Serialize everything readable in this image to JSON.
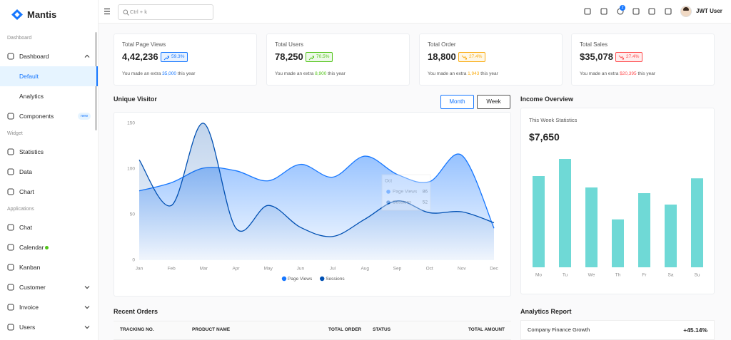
{
  "sidebar": {
    "brand": "Mantis",
    "groups": [
      {
        "label": "Dashboard",
        "items": [
          {
            "label": "Dashboard",
            "chevron": "up"
          },
          {
            "label": "Default",
            "sub": true,
            "selected": true
          },
          {
            "label": "Analytics",
            "sub": true
          },
          {
            "label": "Components",
            "badge": "new"
          }
        ]
      },
      {
        "label": "Widget",
        "items": [
          {
            "label": "Statistics"
          },
          {
            "label": "Data"
          },
          {
            "label": "Chart"
          }
        ]
      },
      {
        "label": "Applications",
        "items": [
          {
            "label": "Chat"
          },
          {
            "label": "Calendar",
            "dot": "#52c41a"
          },
          {
            "label": "Kanban"
          },
          {
            "label": "Customer",
            "chevron": "down"
          },
          {
            "label": "Invoice",
            "chevron": "down"
          },
          {
            "label": "Users",
            "chevron": "down"
          }
        ]
      }
    ]
  },
  "header": {
    "search_placeholder": "Ctrl + k",
    "notifications": 2,
    "user": "JWT User"
  },
  "stats": [
    {
      "title": "Total Page Views",
      "value": "4,42,236",
      "change": "59.3%",
      "trend": "up",
      "color": "#1677ff",
      "note": {
        "prefix": "You made an extra",
        "value": "35,000",
        "suffix": "this year"
      }
    },
    {
      "title": "Total Users",
      "value": "78,250",
      "change": "70.5%",
      "trend": "up",
      "color": "#52c41a",
      "note": {
        "prefix": "You made an extra",
        "value": "8,900",
        "suffix": "this year"
      }
    },
    {
      "title": "Total Order",
      "value": "18,800",
      "change": "27.4%",
      "trend": "down",
      "color": "#faad14",
      "note": {
        "prefix": "You made an extra",
        "value": "1,943",
        "suffix": "this year"
      }
    },
    {
      "title": "Total Sales",
      "value": "$35,078",
      "change": "27.4%",
      "trend": "down",
      "color": "#ff4d4f",
      "note": {
        "prefix": "You made an extra",
        "value": "$20,395",
        "suffix": "this year"
      }
    }
  ],
  "unique_visitor": {
    "title": "Unique Visitor",
    "toggles": [
      {
        "label": "Month",
        "selected": true
      },
      {
        "label": "Week"
      }
    ],
    "chart_data": {
      "type": "area",
      "categories": [
        "Jan",
        "Feb",
        "Mar",
        "Apr",
        "May",
        "Jun",
        "Jul",
        "Aug",
        "Sep",
        "Oct",
        "Nov",
        "Dec"
      ],
      "series": [
        {
          "name": "Page Views",
          "color": "#1677ff",
          "values": [
            76,
            85,
            101,
            98,
            87,
            105,
            91,
            114,
            94,
            86,
            115,
            35
          ]
        },
        {
          "name": "Sessions",
          "color": "#0050b3",
          "values": [
            110,
            60,
            150,
            35,
            60,
            36,
            26,
            45,
            65,
            52,
            53,
            41
          ]
        }
      ],
      "ylim": [
        0,
        150
      ],
      "yticks": [
        0,
        50,
        100,
        150
      ],
      "grid": false,
      "legend": "bottom"
    },
    "tooltip": {
      "title": "Oct",
      "rows": [
        {
          "name": "Page Views",
          "value": 86
        },
        {
          "name": "Sessions",
          "value": 52
        }
      ]
    }
  },
  "income_overview": {
    "title": "Income Overview",
    "subtitle": "This Week Statistics",
    "total": "$7,650",
    "chart_data": {
      "type": "bar",
      "categories": [
        "Mo",
        "Tu",
        "We",
        "Th",
        "Fr",
        "Sa",
        "Su"
      ],
      "values": [
        80,
        95,
        70,
        42,
        65,
        55,
        78
      ],
      "color": "#6fd9d6",
      "ylim": [
        0,
        100
      ]
    }
  },
  "recent_orders": {
    "title": "Recent Orders",
    "columns": [
      "TRACKING NO.",
      "PRODUCT NAME",
      "TOTAL ORDER",
      "STATUS",
      "TOTAL AMOUNT"
    ]
  },
  "analytics_report": {
    "title": "Analytics Report",
    "rows": [
      {
        "label": "Company Finance Growth",
        "value": "+45.14%"
      }
    ]
  }
}
